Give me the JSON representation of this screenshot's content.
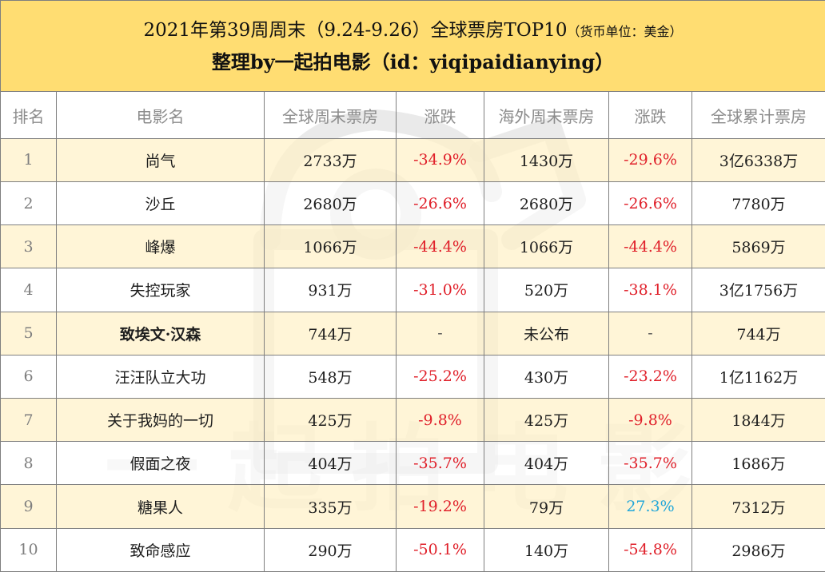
{
  "title": {
    "line1_main": "2021年第39周周末（9.24-9.26）全球票房TOP10",
    "line1_note": "（货币单位：美金）",
    "line2": "整理by一起拍电影（id：yiqipaidianying）"
  },
  "headers": [
    "排名",
    "电影名",
    "全球周末票房",
    "涨跌",
    "海外周末票房",
    "涨跌",
    "全球累计票房"
  ],
  "rows": [
    {
      "rank": "1",
      "name": "尚气",
      "global_weekend": "2733万",
      "global_change": "-34.9%",
      "overseas_weekend": "1430万",
      "overseas_change": "-29.6%",
      "cumulative": "3亿6338万"
    },
    {
      "rank": "2",
      "name": "沙丘",
      "global_weekend": "2680万",
      "global_change": "-26.6%",
      "overseas_weekend": "2680万",
      "overseas_change": "-26.6%",
      "cumulative": "7780万"
    },
    {
      "rank": "3",
      "name": "峰爆",
      "global_weekend": "1066万",
      "global_change": "-44.4%",
      "overseas_weekend": "1066万",
      "overseas_change": "-44.4%",
      "cumulative": "5869万"
    },
    {
      "rank": "4",
      "name": "失控玩家",
      "global_weekend": "931万",
      "global_change": "-31.0%",
      "overseas_weekend": "520万",
      "overseas_change": "-38.1%",
      "cumulative": "3亿1756万"
    },
    {
      "rank": "5",
      "name": "致埃文·汉森",
      "global_weekend": "744万",
      "global_change": "-",
      "overseas_weekend": "未公布",
      "overseas_change": "-",
      "cumulative": "744万"
    },
    {
      "rank": "6",
      "name": "汪汪队立大功",
      "global_weekend": "548万",
      "global_change": "-25.2%",
      "overseas_weekend": "430万",
      "overseas_change": "-23.2%",
      "cumulative": "1亿1162万"
    },
    {
      "rank": "7",
      "name": "关于我妈的一切",
      "global_weekend": "425万",
      "global_change": "-9.8%",
      "overseas_weekend": "425万",
      "overseas_change": "-9.8%",
      "cumulative": "1844万"
    },
    {
      "rank": "8",
      "name": "假面之夜",
      "global_weekend": "404万",
      "global_change": "-35.7%",
      "overseas_weekend": "404万",
      "overseas_change": "-35.7%",
      "cumulative": "1686万"
    },
    {
      "rank": "9",
      "name": "糖果人",
      "global_weekend": "335万",
      "global_change": "-19.2%",
      "overseas_weekend": "79万",
      "overseas_change": "27.3%",
      "cumulative": "7312万"
    },
    {
      "rank": "10",
      "name": "致命感应",
      "global_weekend": "290万",
      "global_change": "-50.1%",
      "overseas_weekend": "140万",
      "overseas_change": "-54.8%",
      "cumulative": "2986万"
    }
  ],
  "watermark": {
    "text": "一起拍电影",
    "logo_icon": "camera-bag-logo-icon"
  },
  "colors": {
    "title_bg": "#ffda66",
    "odd_row_bg": "#fff1c8",
    "negative": "#e0202a",
    "positive": "#22a7d9",
    "header_text": "#8c8c8c",
    "watermark": "#d9d9d9"
  }
}
